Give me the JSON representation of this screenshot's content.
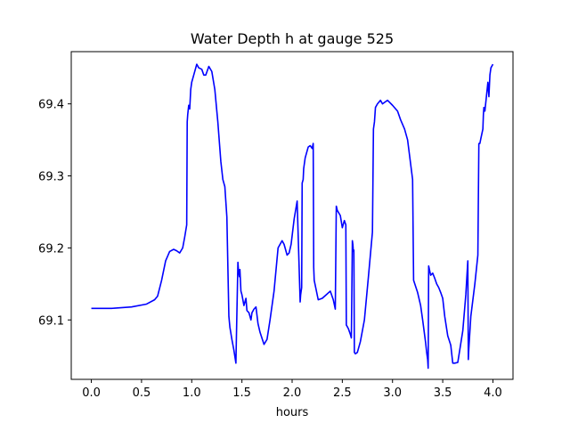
{
  "chart_data": {
    "type": "line",
    "title": "Water Depth h at gauge 525",
    "xlabel": "hours",
    "ylabel": "",
    "xlim": [
      -0.2,
      4.2
    ],
    "ylim": [
      69.0175,
      69.4725
    ],
    "xticks": [
      0.0,
      0.5,
      1.0,
      1.5,
      2.0,
      2.5,
      3.0,
      3.5,
      4.0
    ],
    "xtick_labels": [
      "0.0",
      "0.5",
      "1.0",
      "1.5",
      "2.0",
      "2.5",
      "3.0",
      "3.5",
      "4.0"
    ],
    "yticks": [
      69.1,
      69.2,
      69.3,
      69.4
    ],
    "ytick_labels": [
      "69.1",
      "69.2",
      "69.3",
      "69.4"
    ],
    "grid": false,
    "series": [
      {
        "name": "",
        "color": "#0000ff",
        "x": [
          0.0,
          0.2,
          0.4,
          0.55,
          0.63,
          0.66,
          0.7,
          0.74,
          0.78,
          0.82,
          0.85,
          0.88,
          0.91,
          0.93,
          0.95,
          0.955,
          0.96,
          0.97,
          0.98,
          0.99,
          1.0,
          1.02,
          1.05,
          1.07,
          1.1,
          1.12,
          1.14,
          1.17,
          1.2,
          1.23,
          1.26,
          1.29,
          1.31,
          1.33,
          1.35,
          1.37,
          1.38,
          1.4,
          1.42,
          1.44,
          1.46,
          1.465,
          1.475,
          1.48,
          1.49,
          1.5,
          1.52,
          1.54,
          1.55,
          1.57,
          1.59,
          1.6,
          1.62,
          1.64,
          1.66,
          1.68,
          1.72,
          1.75,
          1.78,
          1.82,
          1.86,
          1.9,
          1.92,
          1.95,
          1.97,
          1.99,
          2.02,
          2.05,
          2.08,
          2.085,
          2.095,
          2.1,
          2.11,
          2.115,
          2.13,
          2.16,
          2.18,
          2.2,
          2.21,
          2.215,
          2.22,
          2.26,
          2.3,
          2.34,
          2.38,
          2.41,
          2.43,
          2.44,
          2.45,
          2.48,
          2.5,
          2.52,
          2.535,
          2.54,
          2.56,
          2.58,
          2.59,
          2.6,
          2.605,
          2.61,
          2.615,
          2.62,
          2.63,
          2.65,
          2.68,
          2.72,
          2.76,
          2.8,
          2.81,
          2.82,
          2.83,
          2.85,
          2.88,
          2.9,
          2.95,
          3.0,
          3.05,
          3.08,
          3.12,
          3.15,
          3.2,
          3.21,
          3.25,
          3.28,
          3.3,
          3.33,
          3.34,
          3.35,
          3.355,
          3.36,
          3.38,
          3.4,
          3.42,
          3.44,
          3.46,
          3.48,
          3.5,
          3.52,
          3.55,
          3.58,
          3.6,
          3.62,
          3.65,
          3.7,
          3.73,
          3.75,
          3.755,
          3.76,
          3.78,
          3.82,
          3.85,
          3.86,
          3.87,
          3.88,
          3.9,
          3.905,
          3.91,
          3.92,
          3.95,
          3.96,
          3.97,
          3.98,
          4.0
        ],
        "y": [
          69.116,
          69.116,
          69.118,
          69.122,
          69.128,
          69.133,
          69.155,
          69.182,
          69.195,
          69.198,
          69.196,
          69.193,
          69.2,
          69.215,
          69.232,
          69.375,
          69.385,
          69.398,
          69.393,
          69.42,
          69.43,
          69.44,
          69.455,
          69.45,
          69.448,
          69.44,
          69.44,
          69.452,
          69.445,
          69.42,
          69.375,
          69.32,
          69.295,
          69.285,
          69.243,
          69.105,
          69.09,
          69.073,
          69.058,
          69.04,
          69.18,
          69.17,
          69.16,
          69.17,
          69.14,
          69.135,
          69.12,
          69.13,
          69.113,
          69.11,
          69.1,
          69.11,
          69.115,
          69.118,
          69.095,
          69.083,
          69.066,
          69.073,
          69.1,
          69.14,
          69.2,
          69.21,
          69.205,
          69.19,
          69.193,
          69.205,
          69.24,
          69.265,
          69.125,
          69.135,
          69.145,
          69.29,
          69.295,
          69.31,
          69.325,
          69.34,
          69.342,
          69.338,
          69.345,
          69.173,
          69.155,
          69.128,
          69.13,
          69.135,
          69.14,
          69.128,
          69.115,
          69.258,
          69.252,
          69.245,
          69.228,
          69.238,
          69.232,
          69.093,
          69.088,
          69.08,
          69.075,
          69.21,
          69.205,
          69.195,
          69.197,
          69.055,
          69.053,
          69.055,
          69.07,
          69.1,
          69.16,
          69.222,
          69.365,
          69.375,
          69.395,
          69.4,
          69.405,
          69.4,
          69.405,
          69.398,
          69.39,
          69.378,
          69.365,
          69.35,
          69.295,
          69.155,
          69.138,
          69.12,
          69.1,
          69.068,
          69.055,
          69.045,
          69.033,
          69.175,
          69.162,
          69.165,
          69.158,
          69.15,
          69.145,
          69.138,
          69.13,
          69.105,
          69.078,
          69.065,
          69.04,
          69.04,
          69.041,
          69.085,
          69.135,
          69.182,
          69.045,
          69.06,
          69.105,
          69.15,
          69.19,
          69.345,
          69.345,
          69.352,
          69.365,
          69.385,
          69.395,
          69.39,
          69.43,
          69.41,
          69.44,
          69.45,
          69.455
        ]
      }
    ]
  }
}
